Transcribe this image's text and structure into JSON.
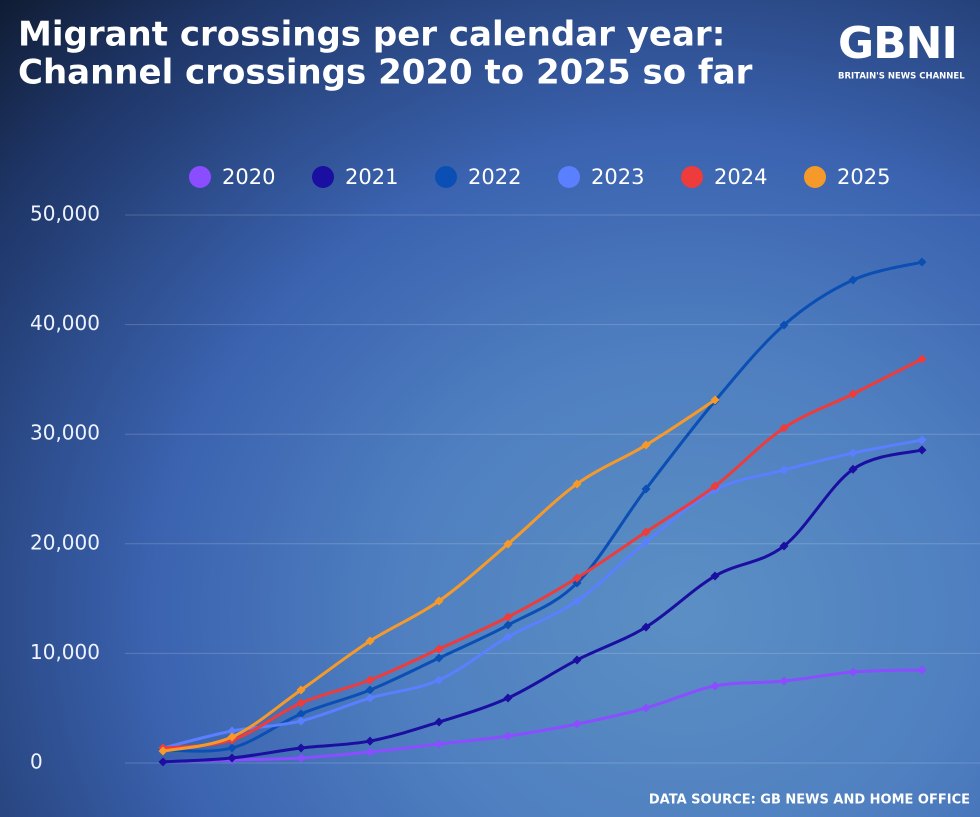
{
  "chart_data": {
    "type": "line",
    "title": "Migrant crossings per calendar year:",
    "subtitle": "Channel crossings 2020 to 2025 so far",
    "logo": "GBNI",
    "tagline": "BRITAIN'S NEWS CHANNEL",
    "source": "DATA SOURCE: GB NEWS AND HOME OFFICE",
    "categories": [
      null,
      null,
      null,
      null,
      null,
      null,
      null,
      null,
      null,
      null,
      null,
      null
    ],
    "ylim": [
      0,
      50000
    ],
    "yticks": [
      0,
      {
        "value": 10000,
        "label": "10,000"
      },
      {
        "value": 20000,
        "label": "20,000"
      },
      {
        "value": 30000,
        "label": "30,000"
      },
      {
        "value": 40000,
        "label": "40,000"
      },
      {
        "value": 50000,
        "label": "50,000"
      }
    ],
    "grid": true,
    "legend": "top",
    "series": [
      {
        "name": "2020",
        "color": "#8a4dff",
        "values": [
          100,
          270,
          460,
          1000,
          1730,
          2460,
          3560,
          5020,
          7030,
          7480,
          8300,
          8490
        ]
      },
      {
        "name": "2021",
        "color": "#1a0fa0",
        "values": [
          100,
          460,
          1370,
          2000,
          3740,
          5930,
          9400,
          12400,
          17060,
          19800,
          26800,
          28560
        ]
      },
      {
        "name": "2022",
        "color": "#0b4fb5",
        "values": [
          1190,
          1370,
          4470,
          6660,
          9580,
          12590,
          16420,
          25000,
          33030,
          39960,
          44070,
          45710
        ]
      },
      {
        "name": "2023",
        "color": "#5a7fff",
        "values": [
          1370,
          2920,
          3830,
          5930,
          7570,
          11500,
          14780,
          20160,
          24910,
          26730,
          28280,
          29470
        ]
      },
      {
        "name": "2024",
        "color": "#ee3b3b",
        "values": [
          1370,
          2100,
          5470,
          7570,
          10400,
          13320,
          16880,
          21080,
          25270,
          30570,
          33670,
          36860
        ]
      },
      {
        "name": "2025",
        "color": "#f59a2a",
        "values": [
          1090,
          2370,
          6660,
          11130,
          14780,
          19980,
          25460,
          29010,
          33120,
          null,
          null,
          null
        ]
      }
    ]
  }
}
